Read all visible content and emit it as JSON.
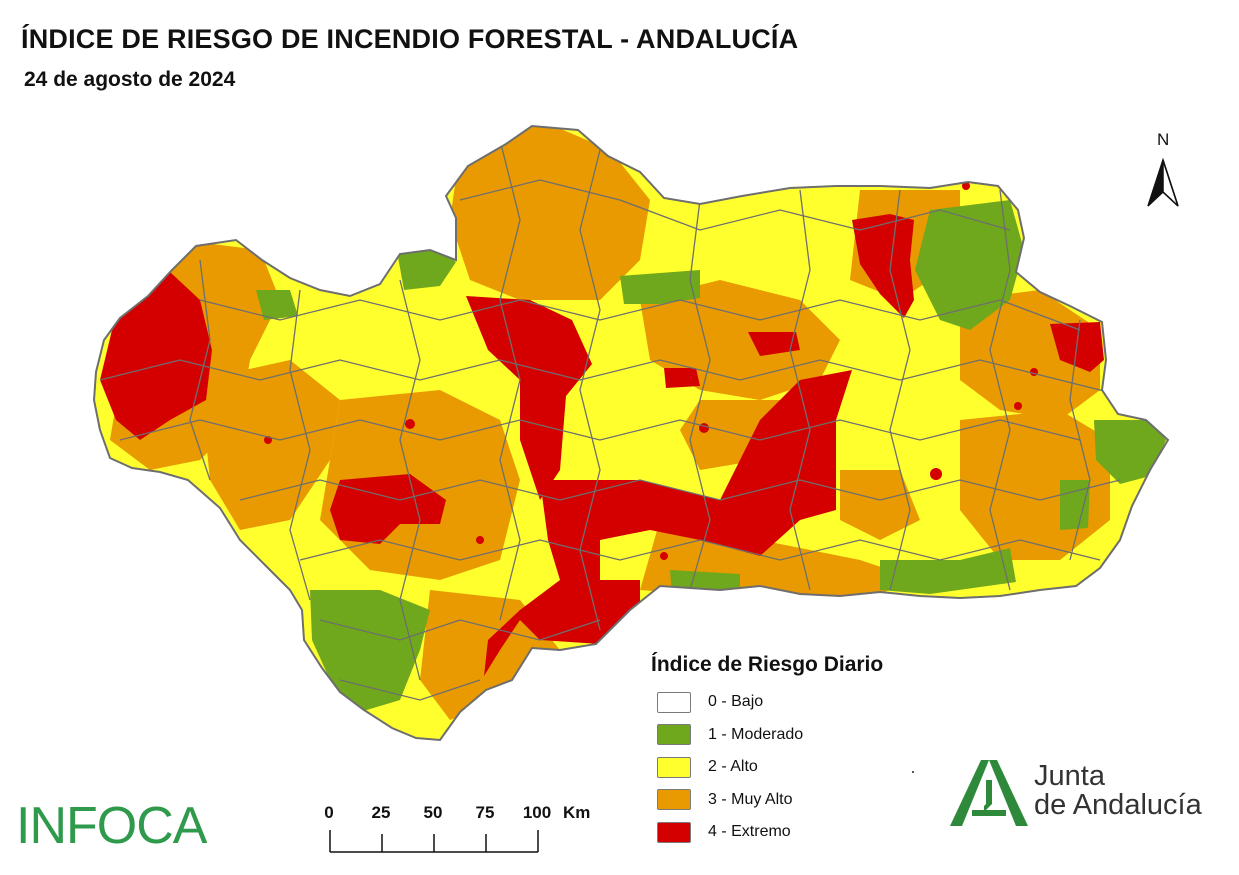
{
  "header": {
    "title": "ÍNDICE DE RIESGO DE INCENDIO FORESTAL - ANDALUCÍA",
    "date": "24 de agosto de 2024"
  },
  "north_arrow": {
    "letter": "N"
  },
  "legend": {
    "title": "Índice de Riesgo Diario",
    "items": [
      {
        "label": "0 - Bajo",
        "color": "#ffffff"
      },
      {
        "label": "1 - Moderado",
        "color": "#6fa81c"
      },
      {
        "label": "2 - Alto",
        "color": "#ffff2e"
      },
      {
        "label": "3 - Muy Alto",
        "color": "#e89a00"
      },
      {
        "label": "4 - Extremo",
        "color": "#d40000"
      }
    ]
  },
  "scale_bar": {
    "ticks": [
      "0",
      "25",
      "50",
      "75",
      "100"
    ],
    "unit": "Km"
  },
  "logos": {
    "infoca": "INFOCA",
    "junta_line1": "Junta",
    "junta_line2": "de Andalucía"
  },
  "map": {
    "region": "Andalucía",
    "boundary_color": "#6e6e6e",
    "dominant_classes": [
      "2 - Alto",
      "3 - Muy Alto",
      "4 - Extremo",
      "1 - Moderado"
    ]
  }
}
